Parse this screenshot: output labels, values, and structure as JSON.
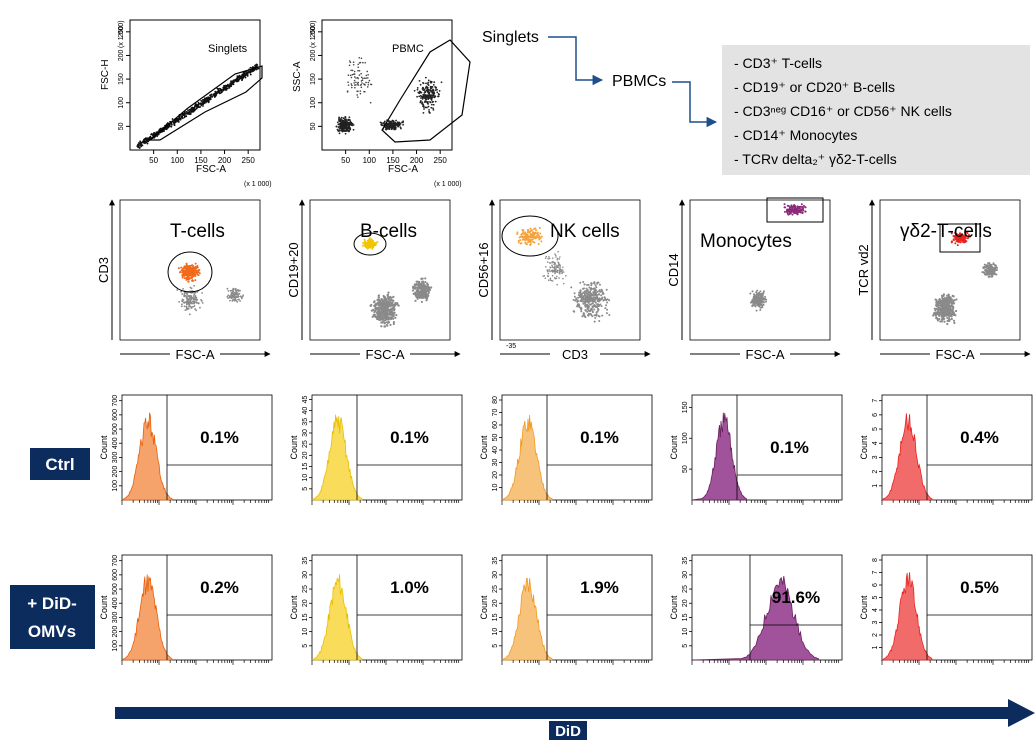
{
  "gating": {
    "plot1": {
      "gate_label": "Singlets",
      "xlabel": "FSC-A",
      "ylabel": "FSC-H",
      "yscale_label": "(x 1 000)",
      "xscale_label": "(x 1 000)",
      "yticks": [
        "50",
        "100",
        "150",
        "200",
        "250"
      ],
      "xticks": [
        "50",
        "100",
        "150",
        "200",
        "250"
      ]
    },
    "plot2": {
      "gate_label": "PBMC",
      "xlabel": "FSC-A",
      "ylabel": "SSC-A",
      "yscale_label": "(x 1 000)",
      "xscale_label": "(x 1 000)",
      "yticks": [
        "50",
        "100",
        "150",
        "200",
        "250"
      ],
      "xticks": [
        "50",
        "100",
        "150",
        "200",
        "250"
      ]
    },
    "flow_singlets": "Singlets",
    "flow_pbmcs": "PBMCs",
    "populations": [
      "- CD3⁺ T-cells",
      "- CD19⁺ or CD20⁺ B-cells",
      "- CD3ⁿᵉᵍ CD16⁺ or CD56⁺ NK cells",
      "- CD14⁺ Monocytes",
      "- TCRv delta₂⁺ γδ2-T-cells"
    ],
    "colors": {
      "box_bg": "#e3e3e3",
      "arrow": "#1f4e8c"
    }
  },
  "dot_plots": [
    {
      "label": "T-cells",
      "ylabel": "CD3",
      "xlabel": "FSC-A",
      "color": "#f26a1b"
    },
    {
      "label": "B-cells",
      "ylabel": "CD19+20",
      "xlabel": "FSC-A",
      "color": "#f5c400"
    },
    {
      "label": "NK cells",
      "ylabel": "CD56+16",
      "xlabel": "CD3",
      "xmin_label": "-35",
      "color": "#f7a13a"
    },
    {
      "label": "Monocytes",
      "ylabel": "CD14",
      "xlabel": "FSC-A",
      "color": "#8c2a7a"
    },
    {
      "label": "γδ2-T-cells",
      "ylabel": "TCR vd2",
      "xlabel": "FSC-A",
      "color": "#e8231f"
    }
  ],
  "rows": {
    "ctrl": "Ctrl",
    "did_line1": "+ DiD-",
    "did_line2": "OMVs"
  },
  "histogram_ylabel": "Count",
  "histogram_yticks": [
    [
      "100",
      "200",
      "300",
      "400",
      "500",
      "600",
      "700"
    ],
    [
      "5",
      "10",
      "15",
      "20",
      "25",
      "30",
      "35",
      "40",
      "45"
    ],
    [
      "10",
      "20",
      "30",
      "40",
      "50",
      "60",
      "70",
      "80"
    ],
    [
      "50",
      "100",
      "150"
    ],
    [
      "1",
      "2",
      "3",
      "4",
      "5",
      "6",
      "7"
    ]
  ],
  "histogram_yticks_row2": [
    [
      "100",
      "200",
      "300",
      "400",
      "500",
      "600",
      "700"
    ],
    [
      "5",
      "10",
      "15",
      "20",
      "25",
      "30",
      "35"
    ],
    [
      "5",
      "10",
      "15",
      "20",
      "25",
      "30",
      "35"
    ],
    [
      "5",
      "10",
      "15",
      "20",
      "25",
      "30",
      "35"
    ],
    [
      "1",
      "2",
      "3",
      "4",
      "5",
      "6",
      "7",
      "8"
    ]
  ],
  "x_axis_label": "DiD",
  "colors": {
    "label_bg": "#0c2c5e",
    "label_fg": "#ffffff",
    "did_arrow": "#0c2c5e",
    "dot_gray": "#8a8a8a"
  },
  "chart_data": {
    "type": "table",
    "title": "",
    "xlabel": "DiD",
    "columns": [
      "T-cells",
      "B-cells",
      "NK cells",
      "Monocytes",
      "γδ2-T-cells"
    ],
    "series": [
      {
        "name": "Ctrl",
        "values": [
          "0.1%",
          "0.1%",
          "0.1%",
          "0.1%",
          "0.4%"
        ]
      },
      {
        "name": "+ DiD-OMVs",
        "values": [
          "0.2%",
          "1.0%",
          "1.9%",
          "91.6%",
          "0.5%"
        ]
      }
    ]
  }
}
